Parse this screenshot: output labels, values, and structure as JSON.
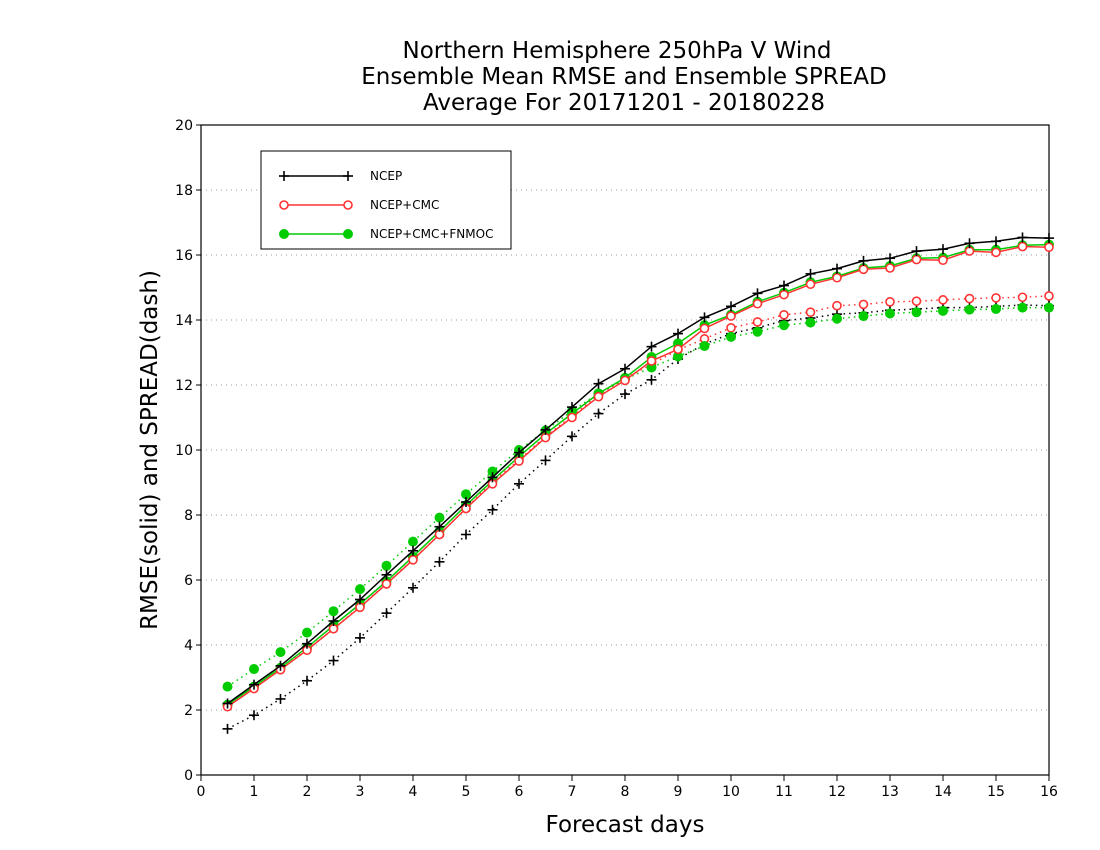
{
  "chart_data": {
    "type": "line",
    "title": [
      "Northern Hemisphere 250hPa V Wind",
      "Ensemble Mean RMSE and Ensemble SPREAD",
      "Average For 20171201 - 20180228"
    ],
    "xlabel": "Forecast days",
    "ylabel": "RMSE(solid) and SPREAD(dash)",
    "xlim": [
      0,
      16
    ],
    "ylim": [
      0,
      20
    ],
    "xticks": [
      0,
      1,
      2,
      3,
      4,
      5,
      6,
      7,
      8,
      9,
      10,
      11,
      12,
      13,
      14,
      15,
      16
    ],
    "yticks": [
      0,
      2,
      4,
      6,
      8,
      10,
      12,
      14,
      16,
      18,
      20
    ],
    "grid": "horizontal dotted",
    "legend_position": "top-left",
    "x": [
      0.5,
      1,
      1.5,
      2,
      2.5,
      3,
      3.5,
      4,
      4.5,
      5,
      5.5,
      6,
      6.5,
      7,
      7.5,
      8,
      8.5,
      9,
      9.5,
      10,
      10.5,
      11,
      11.5,
      12,
      12.5,
      13,
      13.5,
      14,
      14.5,
      15,
      15.5,
      16
    ],
    "series": [
      {
        "name": "NCEP",
        "color": "#000000",
        "marker": "plus",
        "rmse": [
          2.2,
          2.78,
          3.36,
          4.04,
          4.74,
          5.4,
          6.16,
          6.9,
          7.64,
          8.4,
          9.16,
          9.92,
          10.62,
          11.32,
          12.04,
          12.5,
          13.18,
          13.58,
          14.08,
          14.42,
          14.82,
          15.06,
          15.42,
          15.58,
          15.82,
          15.9,
          16.12,
          16.18,
          16.36,
          16.42,
          16.54,
          16.52
        ],
        "spread": [
          1.42,
          1.84,
          2.34,
          2.9,
          3.52,
          4.22,
          4.98,
          5.76,
          6.56,
          7.4,
          8.16,
          8.96,
          9.68,
          10.42,
          11.12,
          11.72,
          12.16,
          12.8,
          13.26,
          13.58,
          13.76,
          13.98,
          14.06,
          14.18,
          14.22,
          14.3,
          14.34,
          14.38,
          14.38,
          14.42,
          14.46,
          14.44
        ]
      },
      {
        "name": "NCEP+CMC",
        "color": "#ff3333",
        "marker": "open-circle",
        "rmse": [
          2.1,
          2.66,
          3.24,
          3.84,
          4.5,
          5.16,
          5.88,
          6.62,
          7.4,
          8.2,
          8.96,
          9.66,
          10.38,
          11.0,
          11.64,
          12.14,
          12.74,
          13.1,
          13.74,
          14.12,
          14.5,
          14.78,
          15.1,
          15.3,
          15.56,
          15.6,
          15.86,
          15.84,
          16.12,
          16.08,
          16.26,
          16.24
        ],
        "spread": [
          2.14,
          2.68,
          3.24,
          3.86,
          4.5,
          5.18,
          5.88,
          6.64,
          7.4,
          8.2,
          9.02,
          9.7,
          10.42,
          11.04,
          11.7,
          12.2,
          12.64,
          13.08,
          13.42,
          13.76,
          13.94,
          14.16,
          14.24,
          14.44,
          14.48,
          14.56,
          14.58,
          14.62,
          14.66,
          14.68,
          14.7,
          14.74
        ]
      },
      {
        "name": "NCEP+CMC+FNMOC",
        "color": "#00cc00",
        "marker": "filled-circle",
        "rmse": [
          2.16,
          2.72,
          3.3,
          3.92,
          4.6,
          5.26,
          5.96,
          6.72,
          7.5,
          8.3,
          9.06,
          9.8,
          10.5,
          11.12,
          11.74,
          12.22,
          12.86,
          13.28,
          13.84,
          14.16,
          14.56,
          14.84,
          15.16,
          15.34,
          15.6,
          15.66,
          15.9,
          15.92,
          16.16,
          16.16,
          16.3,
          16.32
        ],
        "spread": [
          2.72,
          3.26,
          3.78,
          4.38,
          5.04,
          5.72,
          6.44,
          7.18,
          7.92,
          8.64,
          9.34,
          10.0,
          10.6,
          11.2,
          11.74,
          12.18,
          12.54,
          12.88,
          13.2,
          13.48,
          13.64,
          13.84,
          13.92,
          14.04,
          14.12,
          14.2,
          14.24,
          14.28,
          14.32,
          14.34,
          14.38,
          14.38
        ]
      }
    ]
  }
}
